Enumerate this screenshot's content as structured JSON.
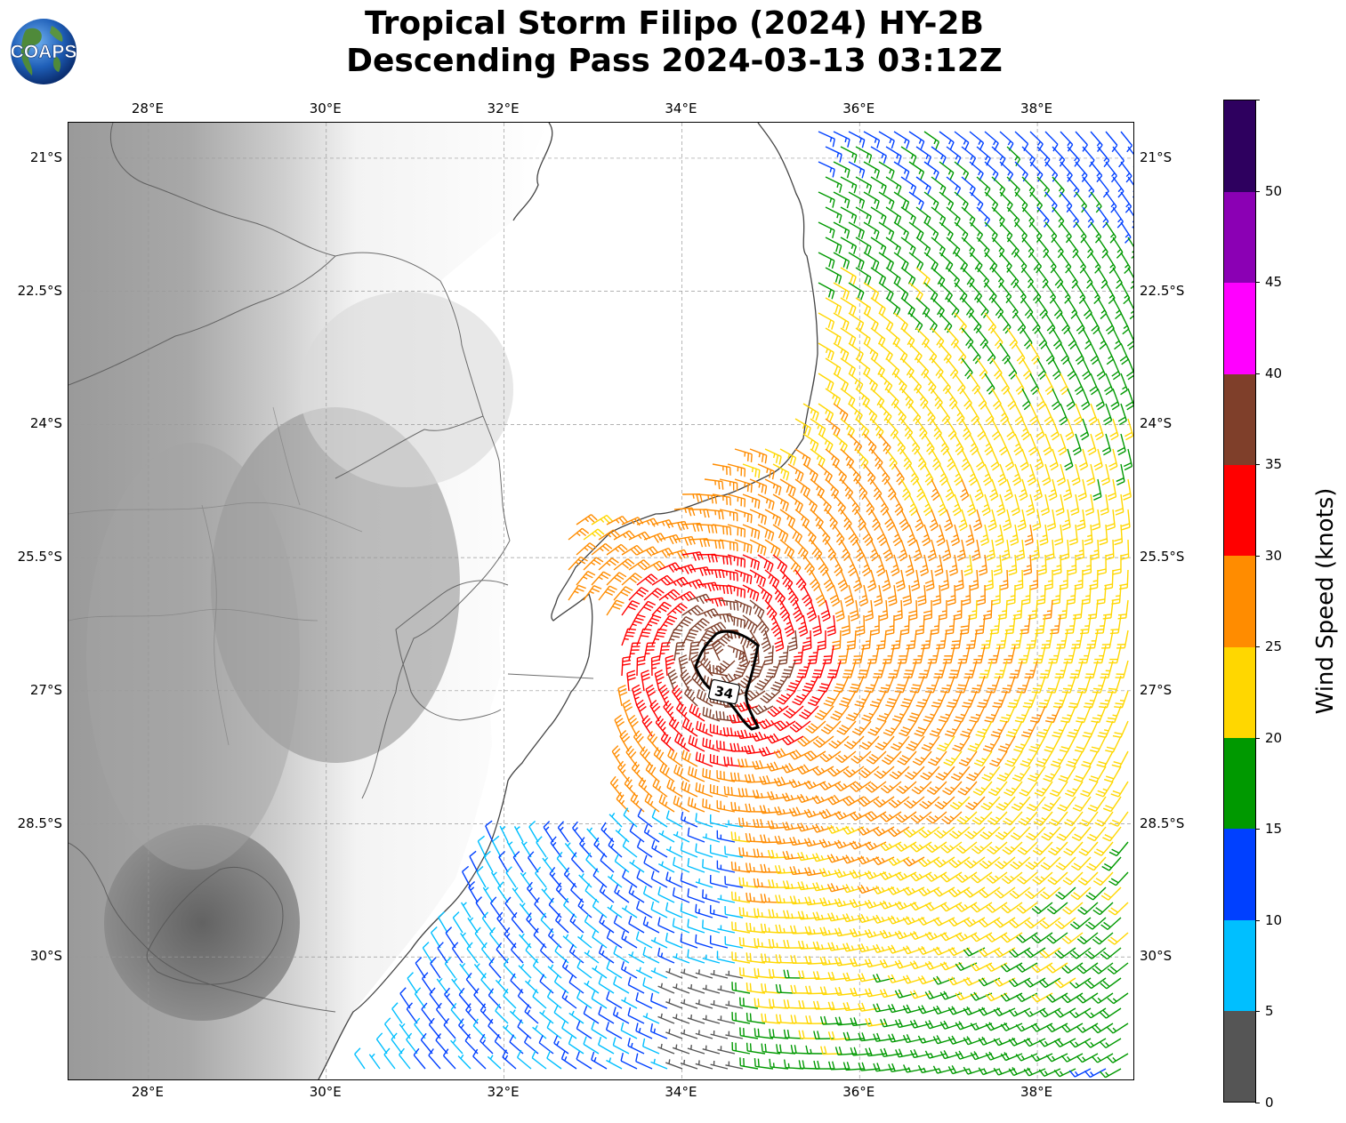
{
  "title": {
    "line1": "Tropical Storm Filipo (2024) HY-2B",
    "line2": "Descending Pass 2024-03-13 03:12Z"
  },
  "logo": {
    "text": "COAPS",
    "icon": "globe-icon"
  },
  "map": {
    "lon_range": [
      27.1,
      39.1
    ],
    "lat_range": [
      -20.6,
      -31.4
    ],
    "lon_ticks": [
      "28°E",
      "30°E",
      "32°E",
      "34°E",
      "36°E",
      "38°E"
    ],
    "lon_values": [
      28,
      30,
      32,
      34,
      36,
      38
    ],
    "lat_ticks": [
      "21°S",
      "22.5°S",
      "24°S",
      "25.5°S",
      "27°S",
      "28.5°S",
      "30°S"
    ],
    "lat_values": [
      -21,
      -22.5,
      -24,
      -25.5,
      -27,
      -28.5,
      -30
    ],
    "gridlines": true,
    "land_shading": "grayscale topography",
    "contour_label": "34",
    "storm_center": {
      "lon": 34.5,
      "lat": -26.6
    }
  },
  "colorbar": {
    "title": "Wind Speed (knots)",
    "ticks": [
      "0",
      "5",
      "10",
      "15",
      "20",
      "25",
      "30",
      "35",
      "40",
      "45",
      "50"
    ],
    "bins": [
      {
        "min": 0,
        "max": 5,
        "color": "#555555"
      },
      {
        "min": 5,
        "max": 10,
        "color": "#00bfff"
      },
      {
        "min": 10,
        "max": 15,
        "color": "#0040ff"
      },
      {
        "min": 15,
        "max": 20,
        "color": "#009900"
      },
      {
        "min": 20,
        "max": 25,
        "color": "#ffd700"
      },
      {
        "min": 25,
        "max": 30,
        "color": "#ff8c00"
      },
      {
        "min": 30,
        "max": 35,
        "color": "#ff0000"
      },
      {
        "min": 35,
        "max": 40,
        "color": "#7f3f2a"
      },
      {
        "min": 40,
        "max": 45,
        "color": "#ff00ff"
      },
      {
        "min": 45,
        "max": 50,
        "color": "#8b00b4"
      },
      {
        "min": 50,
        "max": 55,
        "color": "#2e005f"
      }
    ]
  }
}
